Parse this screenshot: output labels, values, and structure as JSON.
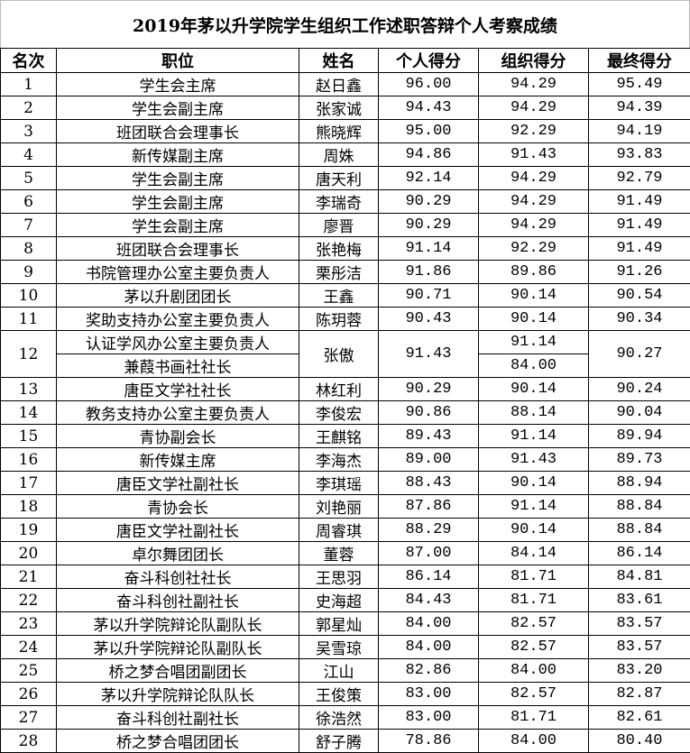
{
  "title": "2019年茅以升学院学生组织工作述职答辩个人考察成绩",
  "headers": [
    "名次",
    "职位",
    "姓名",
    "个人得分",
    "组织得分",
    "最终得分"
  ],
  "rows": [
    {
      "rank": "1",
      "positions": [
        "学生会主席"
      ],
      "name": "赵日鑫",
      "personal": "96.00",
      "org": [
        "94.29"
      ],
      "final": "95.49"
    },
    {
      "rank": "2",
      "positions": [
        "学生会副主席"
      ],
      "name": "张家诚",
      "personal": "94.43",
      "org": [
        "94.29"
      ],
      "final": "94.39"
    },
    {
      "rank": "3",
      "positions": [
        "班团联合会理事长"
      ],
      "name": "熊晓辉",
      "personal": "95.00",
      "org": [
        "92.29"
      ],
      "final": "94.19"
    },
    {
      "rank": "4",
      "positions": [
        "新传媒副主席"
      ],
      "name": "周姝",
      "personal": "94.86",
      "org": [
        "91.43"
      ],
      "final": "93.83"
    },
    {
      "rank": "5",
      "positions": [
        "学生会副主席"
      ],
      "name": "唐天利",
      "personal": "92.14",
      "org": [
        "94.29"
      ],
      "final": "92.79"
    },
    {
      "rank": "6",
      "positions": [
        "学生会副主席"
      ],
      "name": "李瑞奇",
      "personal": "90.29",
      "org": [
        "94.29"
      ],
      "final": "91.49"
    },
    {
      "rank": "7",
      "positions": [
        "学生会副主席"
      ],
      "name": "廖晋",
      "personal": "90.29",
      "org": [
        "94.29"
      ],
      "final": "91.49"
    },
    {
      "rank": "8",
      "positions": [
        "班团联合会理事长"
      ],
      "name": "张艳梅",
      "personal": "91.14",
      "org": [
        "92.29"
      ],
      "final": "91.49"
    },
    {
      "rank": "9",
      "positions": [
        "书院管理办公室主要负责人"
      ],
      "name": "栗彤洁",
      "personal": "91.86",
      "org": [
        "89.86"
      ],
      "final": "91.26"
    },
    {
      "rank": "10",
      "positions": [
        "茅以升剧团团长"
      ],
      "name": "王鑫",
      "personal": "90.71",
      "org": [
        "90.14"
      ],
      "final": "90.54"
    },
    {
      "rank": "11",
      "positions": [
        "奖助支持办公室主要负责人"
      ],
      "name": "陈玥蓉",
      "personal": "90.43",
      "org": [
        "90.14"
      ],
      "final": "90.34"
    },
    {
      "rank": "12",
      "positions": [
        "认证学风办公室主要负责人",
        "兼葭书画社社长"
      ],
      "name": "张傲",
      "personal": "91.43",
      "org": [
        "91.14",
        "84.00"
      ],
      "final": "90.27"
    },
    {
      "rank": "13",
      "positions": [
        "唐臣文学社社长"
      ],
      "name": "林红利",
      "personal": "90.29",
      "org": [
        "90.14"
      ],
      "final": "90.24"
    },
    {
      "rank": "14",
      "positions": [
        "教务支持办公室主要负责人"
      ],
      "name": "李俊宏",
      "personal": "90.86",
      "org": [
        "88.14"
      ],
      "final": "90.04"
    },
    {
      "rank": "15",
      "positions": [
        "青协副会长"
      ],
      "name": "王麒铭",
      "personal": "89.43",
      "org": [
        "91.14"
      ],
      "final": "89.94"
    },
    {
      "rank": "16",
      "positions": [
        "新传媒主席"
      ],
      "name": "李海杰",
      "personal": "89.00",
      "org": [
        "91.43"
      ],
      "final": "89.73"
    },
    {
      "rank": "17",
      "positions": [
        "唐臣文学社副社长"
      ],
      "name": "李琪瑶",
      "personal": "88.43",
      "org": [
        "90.14"
      ],
      "final": "88.94"
    },
    {
      "rank": "18",
      "positions": [
        "青协会长"
      ],
      "name": "刘艳丽",
      "personal": "87.86",
      "org": [
        "91.14"
      ],
      "final": "88.84"
    },
    {
      "rank": "19",
      "positions": [
        "唐臣文学社副社长"
      ],
      "name": "周睿琪",
      "personal": "88.29",
      "org": [
        "90.14"
      ],
      "final": "88.84"
    },
    {
      "rank": "20",
      "positions": [
        "卓尔舞团团长"
      ],
      "name": "董蓉",
      "personal": "87.00",
      "org": [
        "84.14"
      ],
      "final": "86.14"
    },
    {
      "rank": "21",
      "positions": [
        "奋斗科创社社长"
      ],
      "name": "王思羽",
      "personal": "86.14",
      "org": [
        "81.71"
      ],
      "final": "84.81"
    },
    {
      "rank": "22",
      "positions": [
        "奋斗科创社副社长"
      ],
      "name": "史海超",
      "personal": "84.43",
      "org": [
        "81.71"
      ],
      "final": "83.61"
    },
    {
      "rank": "23",
      "positions": [
        "茅以升学院辩论队副队长"
      ],
      "name": "郭星灿",
      "personal": "84.00",
      "org": [
        "82.57"
      ],
      "final": "83.57"
    },
    {
      "rank": "24",
      "positions": [
        "茅以升学院辩论队副队长"
      ],
      "name": "吴雪琼",
      "personal": "84.00",
      "org": [
        "82.57"
      ],
      "final": "83.57"
    },
    {
      "rank": "25",
      "positions": [
        "桥之梦合唱团副团长"
      ],
      "name": "江山",
      "personal": "82.86",
      "org": [
        "84.00"
      ],
      "final": "83.20"
    },
    {
      "rank": "26",
      "positions": [
        "茅以升学院辩论队队长"
      ],
      "name": "王俊策",
      "personal": "83.00",
      "org": [
        "82.57"
      ],
      "final": "82.87"
    },
    {
      "rank": "27",
      "positions": [
        "奋斗科创社副社长"
      ],
      "name": "徐浩然",
      "personal": "83.00",
      "org": [
        "81.71"
      ],
      "final": "82.61"
    },
    {
      "rank": "28",
      "positions": [
        "桥之梦合唱团团长"
      ],
      "name": "舒子腾",
      "personal": "78.86",
      "org": [
        "84.00"
      ],
      "final": "80.40"
    }
  ]
}
